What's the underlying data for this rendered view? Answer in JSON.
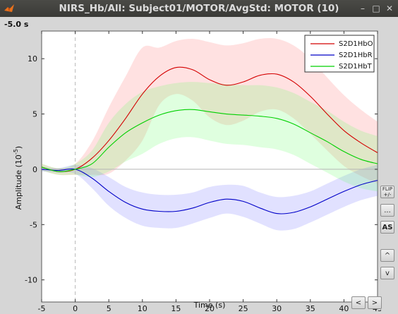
{
  "window": {
    "title": "NIRS_Hb/All: Subject01/MOTOR/AvgStd: MOTOR (10)",
    "controls": {
      "minimize": "–",
      "maximize": "□",
      "close": "✕"
    }
  },
  "time_readout": "-5.0 s",
  "buttons": {
    "flip": "FLIP +/-",
    "more": "...",
    "autoscale": "AS",
    "up": "^",
    "down": "v",
    "prev": "<",
    "next": ">"
  },
  "colors": {
    "S2D1HbO": "#d40000",
    "S2D1HbR": "#0000c8",
    "S2D1HbT": "#00d000"
  },
  "chart_data": {
    "type": "line",
    "xlabel": "Time (s)",
    "ylabel": "Amplitude (10",
    "ylabel_exponent": "-5",
    "ylabel_close": ")",
    "xlim": [
      -5,
      45
    ],
    "ylim": [
      -12,
      12.5
    ],
    "xticks": [
      -5,
      0,
      5,
      10,
      15,
      20,
      25,
      30,
      35,
      40,
      45
    ],
    "yticks": [
      -10,
      -5,
      0,
      5,
      10
    ],
    "event_marker_x": 0,
    "legend_position": "top-right",
    "x": [
      -5,
      -2.5,
      0,
      2.5,
      5,
      7.5,
      10,
      12.5,
      15,
      17.5,
      20,
      22.5,
      25,
      27.5,
      30,
      32.5,
      35,
      37.5,
      40,
      42.5,
      45
    ],
    "series": [
      {
        "name": "S2D1HbO",
        "values": [
          0.2,
          -0.2,
          0.0,
          1.0,
          2.6,
          4.6,
          6.8,
          8.4,
          9.2,
          9.0,
          8.1,
          7.6,
          7.9,
          8.5,
          8.6,
          7.9,
          6.6,
          5.0,
          3.5,
          2.4,
          1.5
        ],
        "std": [
          0.3,
          0.3,
          0.5,
          1.5,
          3.0,
          3.8,
          4.2,
          2.6,
          2.4,
          2.8,
          3.4,
          3.6,
          3.5,
          3.3,
          3.2,
          3.3,
          3.4,
          3.3,
          3.2,
          3.0,
          2.8
        ]
      },
      {
        "name": "S2D1HbR",
        "values": [
          0.0,
          -0.1,
          0.0,
          -0.8,
          -2.0,
          -3.0,
          -3.6,
          -3.8,
          -3.8,
          -3.5,
          -3.0,
          -2.7,
          -2.9,
          -3.5,
          -4.0,
          -3.9,
          -3.4,
          -2.7,
          -2.0,
          -1.4,
          -1.0
        ],
        "std": [
          0.2,
          0.2,
          0.4,
          0.9,
          1.3,
          1.4,
          1.5,
          1.5,
          1.5,
          1.4,
          1.4,
          1.3,
          1.4,
          1.4,
          1.5,
          1.5,
          1.4,
          1.4,
          1.4,
          1.4,
          1.4
        ]
      },
      {
        "name": "S2D1HbT",
        "values": [
          0.2,
          -0.2,
          0.0,
          0.5,
          2.0,
          3.3,
          4.2,
          4.9,
          5.3,
          5.4,
          5.2,
          5.0,
          4.9,
          4.8,
          4.6,
          4.1,
          3.3,
          2.5,
          1.6,
          0.9,
          0.5
        ],
        "std": [
          0.3,
          0.3,
          0.5,
          1.2,
          2.2,
          2.6,
          2.8,
          2.6,
          2.5,
          2.5,
          2.6,
          2.7,
          2.7,
          2.8,
          2.8,
          2.8,
          2.8,
          2.8,
          2.7,
          2.6,
          2.5
        ]
      }
    ]
  }
}
